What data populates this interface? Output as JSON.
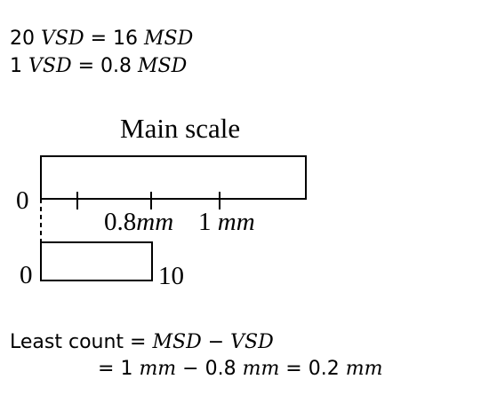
{
  "equations": {
    "line1": {
      "lhs_num": "20 ",
      "lhs_unit": "VSD",
      "op": " = ",
      "rhs_num": "16 ",
      "rhs_unit": "MSD"
    },
    "line2": {
      "lhs_num": "1 ",
      "lhs_unit": "VSD",
      "op": " = ",
      "rhs_num": "0.8 ",
      "rhs_unit": "MSD"
    }
  },
  "diagram": {
    "title": "Main scale",
    "main_zero": "0",
    "vernier_zero": "0",
    "vernier_end": "10",
    "tick_label_1": {
      "num": "0.8",
      "unit": "mm"
    },
    "tick_label_2": {
      "num": "1 ",
      "unit": "mm"
    }
  },
  "least_count": {
    "line1": {
      "label": "Least count = ",
      "a": "MSD",
      "minus": " − ",
      "b": "VSD"
    },
    "line2": {
      "eq": "= ",
      "n1": "1 ",
      "u1": "mm",
      "minus": " − ",
      "n2": "0.8 ",
      "u2": "mm",
      "eq2": " = ",
      "n3": "0.2 ",
      "u3": "mm"
    }
  }
}
